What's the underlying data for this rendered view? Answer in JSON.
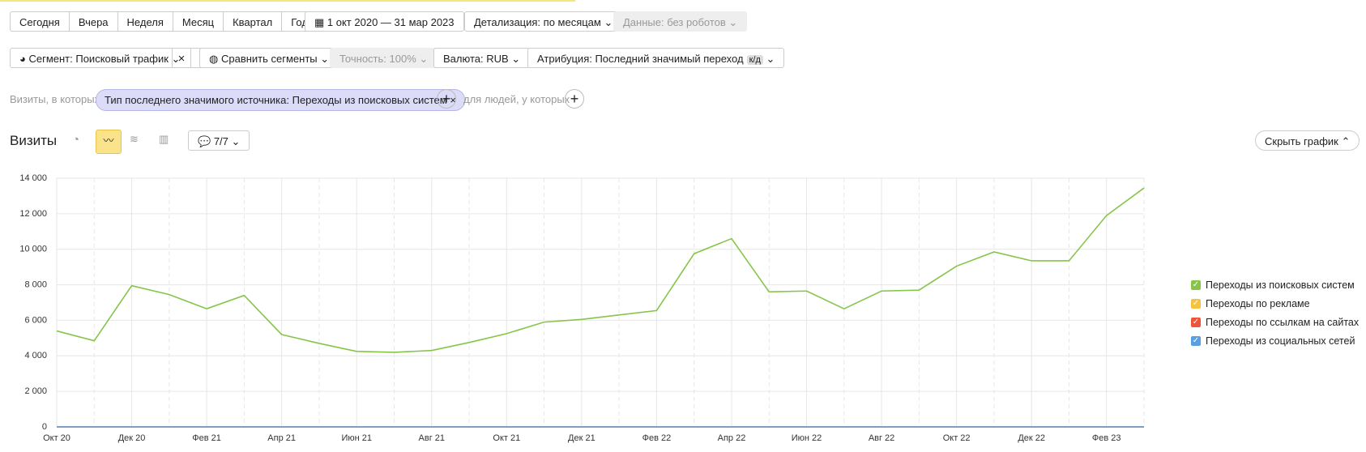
{
  "toolbar": {
    "periods": [
      "Сегодня",
      "Вчера",
      "Неделя",
      "Месяц",
      "Квартал",
      "Год"
    ],
    "date_range": "1 окт 2020 — 31 мар 2023",
    "detail": "Детализация: по месяцам",
    "data_filter": "Данные: без роботов"
  },
  "segment_bar": {
    "segment": "Сегмент: Поисковый трафик",
    "compare": "Сравнить сегменты",
    "accuracy": "Точность: 100%",
    "currency": "Валюта: RUB",
    "attribution": "Атрибуция: Последний значимый переход",
    "attribution_badge": "к/д"
  },
  "filter_bar": {
    "prefix": "Визиты, в которых",
    "chip": "Тип последнего значимого источника: Переходы из поисковых систем",
    "people": "для людей, у которых"
  },
  "report": {
    "title": "Визиты",
    "notes": "7/7",
    "hide_chart": "Скрыть график"
  },
  "chart_data": {
    "type": "line",
    "categories": [
      "Окт 20",
      null,
      "Дек 20",
      null,
      "Фев 21",
      null,
      "Апр 21",
      null,
      "Июн 21",
      null,
      "Авг 21",
      null,
      "Окт 21",
      null,
      "Дек 21",
      null,
      "Фев 22",
      null,
      "Апр 22",
      null,
      "Июн 22",
      null,
      "Авг 22",
      null,
      "Окт 22",
      null,
      "Дек 22",
      null,
      "Фев 23",
      null
    ],
    "series": [
      {
        "name": "Переходы из поисковых систем",
        "color": "#86c54a",
        "values": [
          5400,
          4850,
          7950,
          7450,
          6650,
          7400,
          5200,
          4700,
          4250,
          4200,
          4300,
          4750,
          5250,
          5900,
          6050,
          6300,
          6550,
          9750,
          10600,
          7600,
          7650,
          6650,
          7650,
          7700,
          9050,
          9850,
          9350,
          9350,
          11900,
          13450
        ]
      },
      {
        "name": "Переходы по рекламе",
        "color": "#f5c342",
        "values": [
          0,
          0,
          0,
          0,
          0,
          0,
          0,
          0,
          0,
          0,
          0,
          0,
          0,
          0,
          0,
          0,
          0,
          0,
          0,
          0,
          0,
          0,
          0,
          0,
          0,
          0,
          0,
          0,
          0,
          0
        ]
      },
      {
        "name": "Переходы по ссылкам на сайтах",
        "color": "#f0533a",
        "values": [
          0,
          0,
          0,
          0,
          0,
          0,
          0,
          0,
          0,
          0,
          0,
          0,
          0,
          0,
          0,
          0,
          0,
          0,
          0,
          0,
          0,
          0,
          0,
          0,
          0,
          0,
          0,
          0,
          0,
          0
        ]
      },
      {
        "name": "Переходы из социальных сетей",
        "color": "#5a9fe0",
        "values": [
          0,
          0,
          0,
          0,
          0,
          0,
          0,
          0,
          0,
          0,
          0,
          0,
          0,
          0,
          0,
          0,
          0,
          0,
          0,
          0,
          0,
          0,
          0,
          0,
          0,
          0,
          0,
          0,
          0,
          0
        ]
      }
    ],
    "ylim": [
      0,
      14000
    ],
    "yticks": [
      0,
      {
        "value": 2000,
        "label": "2 000"
      },
      {
        "value": 4000,
        "label": "4 000"
      },
      {
        "value": 6000,
        "label": "6 000"
      },
      {
        "value": 8000,
        "label": "8 000"
      },
      {
        "value": 10000,
        "label": "10 000"
      },
      {
        "value": 12000,
        "label": "12 000"
      },
      {
        "value": 14000,
        "label": "14 000"
      }
    ],
    "grid": true,
    "legend": "right"
  }
}
